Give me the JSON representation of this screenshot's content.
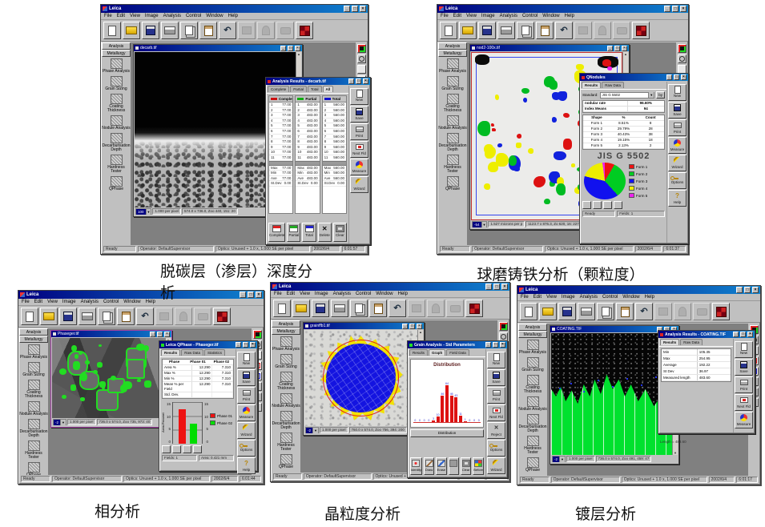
{
  "captions": {
    "decarb": "脱碳层（渗层）深度分",
    "decarb_wrap": "析",
    "nodule": "球磨铸铁分析（颗粒度）",
    "phase": "相分析",
    "grain": "晶粒度分析",
    "coating": "镀层分析"
  },
  "app": {
    "title": "Leica",
    "menus": [
      "File",
      "Edit",
      "View",
      "Image",
      "Analysis",
      "Control",
      "Window",
      "Help"
    ],
    "toolbar": [
      {
        "name": "new-icon"
      },
      {
        "name": "open-icon"
      },
      {
        "name": "save-icon"
      },
      {
        "name": "print-icon"
      },
      {
        "name": "copy-icon"
      },
      {
        "name": "paste-icon"
      },
      {
        "name": "undo-icon"
      },
      {
        "name": "measure-icon",
        "dis": true
      },
      {
        "name": "stage-icon",
        "dis": true
      },
      {
        "name": "camera-icon",
        "dis": true
      },
      {
        "name": "pattern-icon"
      }
    ],
    "sidebar_tabs": [
      "Analysis",
      "Metallurgy"
    ],
    "sidebar_items": [
      {
        "label": "Phase Analysis",
        "icon": "phase-analysis-icon"
      },
      {
        "label": "Grain Sizing",
        "icon": "grain-sizing-icon"
      },
      {
        "label": "Coating Thickness",
        "icon": "coating-thickness-icon"
      },
      {
        "label": "Nodule Analysis",
        "icon": "nodule-analysis-icon"
      },
      {
        "label": "Decarburisation Depth",
        "icon": "decarburisation-depth-icon"
      },
      {
        "label": "Hardness Tester",
        "icon": "hardness-tester-icon"
      },
      {
        "label": "QPhase",
        "icon": "qphase-icon"
      }
    ],
    "right_toolbar": [
      {
        "name": "acquire-icon"
      },
      {
        "name": "zoom-icon"
      },
      {
        "name": "pointer-icon"
      },
      {
        "name": "red-frame-icon"
      },
      {
        "name": "blue-frame-icon"
      },
      {
        "name": "pan-icon"
      },
      {
        "name": "snapshot-icon"
      },
      {
        "name": "bin-icon"
      }
    ],
    "status": {
      "ready": "Ready",
      "operator": "Operator: DefaultSupervisor",
      "optics": "Optics: Unused + 1.0 x, 1.000 SE per pixel",
      "date": "2002/6/4"
    }
  },
  "decarb": {
    "time": "6:01:57",
    "image": {
      "title": "decarb.tif",
      "zoom": "100",
      "scale": "1.000 per pixel",
      "pos": "574.0 x 736.0, Zoo  440, 151: 20"
    },
    "results": {
      "title": "Analysis Results - decarb.tif",
      "tabs": [
        "Complete",
        "Partial",
        "Total",
        "All"
      ],
      "cols": [
        {
          "name": "Complete",
          "color": "#cc1111",
          "rows": [
            {
              "i": "1",
              "v": "77.00"
            },
            {
              "i": "2",
              "v": "77.00"
            },
            {
              "i": "3",
              "v": "77.00"
            },
            {
              "i": "4",
              "v": "77.00"
            },
            {
              "i": "5",
              "v": "77.00"
            },
            {
              "i": "6",
              "v": "77.00"
            },
            {
              "i": "7",
              "v": "77.00"
            },
            {
              "i": "8",
              "v": "77.00"
            },
            {
              "i": "9",
              "v": "77.00"
            },
            {
              "i": "10",
              "v": "77.00"
            },
            {
              "i": "11",
              "v": "77.00"
            }
          ],
          "stats": [
            {
              "k": "Max",
              "v": "77.00"
            },
            {
              "k": "Min",
              "v": "77.00"
            },
            {
              "k": "Ave",
              "v": "77.00"
            },
            {
              "k": "St.Dev",
              "v": "0.00"
            }
          ]
        },
        {
          "name": "Partial",
          "color": "#11aa11",
          "rows": [
            {
              "i": "1",
              "v": "483.00"
            },
            {
              "i": "2",
              "v": "483.00"
            },
            {
              "i": "3",
              "v": "483.00"
            },
            {
              "i": "4",
              "v": "483.00"
            },
            {
              "i": "5",
              "v": "483.00"
            },
            {
              "i": "6",
              "v": "483.00"
            },
            {
              "i": "7",
              "v": "483.00"
            },
            {
              "i": "8",
              "v": "483.00"
            },
            {
              "i": "9",
              "v": "483.00"
            },
            {
              "i": "10",
              "v": "483.00"
            },
            {
              "i": "11",
              "v": "483.00"
            }
          ],
          "stats": [
            {
              "k": "Max",
              "v": "483.00"
            },
            {
              "k": "Min",
              "v": "483.00"
            },
            {
              "k": "Ave",
              "v": "483.00"
            },
            {
              "k": "St.Dev",
              "v": "0.00"
            }
          ]
        },
        {
          "name": "Total",
          "color": "#1111cc",
          "rows": [
            {
              "i": "1",
              "v": "560.00"
            },
            {
              "i": "2",
              "v": "560.00"
            },
            {
              "i": "3",
              "v": "560.00"
            },
            {
              "i": "4",
              "v": "560.00"
            },
            {
              "i": "5",
              "v": "560.00"
            },
            {
              "i": "6",
              "v": "560.00"
            },
            {
              "i": "7",
              "v": "560.00"
            },
            {
              "i": "8",
              "v": "560.00"
            },
            {
              "i": "9",
              "v": "560.00"
            },
            {
              "i": "10",
              "v": "560.00"
            },
            {
              "i": "11",
              "v": "560.00"
            }
          ],
          "stats": [
            {
              "k": "Max",
              "v": "560.00"
            },
            {
              "k": "Min",
              "v": "560.00"
            },
            {
              "k": "Ave",
              "v": "560.00"
            },
            {
              "k": "St.Dev",
              "v": "0.00"
            }
          ]
        }
      ],
      "bottom_buttons": [
        {
          "label": "Complete",
          "icon": "table-red-icon"
        },
        {
          "label": "Partial",
          "icon": "table-green-icon"
        },
        {
          "label": "Total",
          "icon": "table-blue-icon"
        },
        {
          "label": "Delete",
          "icon": "delete-x-icon"
        },
        {
          "label": "Clear",
          "icon": "monitor-icon"
        }
      ],
      "side_buttons": [
        {
          "label": "New",
          "icon": "page-icon"
        },
        {
          "label": "Save",
          "icon": "disk-icon"
        },
        {
          "label": "Print",
          "icon": "printer-icon"
        },
        {
          "label": "Next Fld",
          "icon": "next-field-icon"
        },
        {
          "label": "Measure",
          "icon": "measure-pie-icon"
        },
        {
          "label": "Wizard",
          "icon": "wand-icon"
        }
      ]
    }
  },
  "nodules": {
    "time": "6:01:37",
    "image": {
      "title": "nod2-100x.tif",
      "zoom": "-54",
      "scale": "1.527 microns per p",
      "pos": "1123.7 x 876.3, Zo  620, 16: 227"
    },
    "blob_colors": [
      "#dd1111",
      "#00bb22",
      "#1122dd",
      "#eeee00",
      "#ee22ee"
    ],
    "window": {
      "title": "QNodules",
      "tabs": [
        "Results",
        "Raw Data"
      ],
      "standard_label": "Standard:",
      "standard_value": "JIS G 5502",
      "by_label": "by",
      "summary": [
        {
          "k": "nodular rate",
          "v": "96.60%"
        },
        {
          "k": "Index Means",
          "v": "94"
        }
      ],
      "table": {
        "headers": [
          "Shape",
          "%",
          "Count"
        ],
        "rows": [
          {
            "shape": "Form 1",
            "pct": "8.51%",
            "count": "8"
          },
          {
            "shape": "Form 2",
            "pct": "29.79%",
            "count": "28"
          },
          {
            "shape": "Form 3",
            "pct": "40.43%",
            "count": "38"
          },
          {
            "shape": "Form 4",
            "pct": "19.15%",
            "count": "18"
          },
          {
            "shape": "Form 5",
            "pct": "2.13%",
            "count": "2"
          }
        ]
      },
      "chart_title": "JIS G 5502",
      "legend": [
        {
          "label": "Form 1",
          "color": "#ee1111"
        },
        {
          "label": "Form 2",
          "color": "#00cc22"
        },
        {
          "label": "Form 3",
          "color": "#1111ee"
        },
        {
          "label": "Form 4",
          "color": "#eeee00"
        },
        {
          "label": "Form 5",
          "color": "#ee22ee"
        }
      ],
      "mini_icons": [
        {
          "name": "field-list-icon"
        },
        {
          "name": "field-step-icon"
        },
        {
          "name": "chart-toggle-icon"
        },
        {
          "name": "table-toggle-icon"
        }
      ],
      "status_left": "Ready",
      "status_right": "Fields: 1",
      "side_buttons": [
        {
          "label": "New",
          "icon": "page-icon"
        },
        {
          "label": "Save",
          "icon": "disk-icon"
        },
        {
          "label": "Print",
          "icon": "printer-icon"
        },
        {
          "label": "Measure",
          "icon": "measure-pie-icon"
        },
        {
          "label": "Wizard",
          "icon": "wand-icon"
        },
        {
          "label": "Options",
          "icon": "key-icon"
        },
        {
          "label": "Help",
          "icon": "help-icon"
        }
      ]
    }
  },
  "phase": {
    "time": "6:01:44",
    "image": {
      "title": "Phaseger.tif",
      "zoom": "-2",
      "scale": "1.000 per pixel",
      "pos": "736.0 x 574.0, Zoo  735, 973: 40"
    },
    "blob_color": "#22dd22",
    "window": {
      "title": "Leica QPhase - Phaseger.tif",
      "tabs": [
        "Results",
        "Raw Data",
        "Statistics"
      ],
      "table": {
        "headers": [
          "Phase",
          "Phase 01",
          "Phase 02"
        ],
        "rows": [
          {
            "k": "Area %",
            "p1": "12.290",
            "p2": "7.310"
          },
          {
            "k": "Max %",
            "p1": "12.290",
            "p2": "7.310"
          },
          {
            "k": "Min %",
            "p1": "12.290",
            "p2": "7.310"
          },
          {
            "k": "Mean % per Field",
            "p1": "12.290",
            "p2": "7.310"
          },
          {
            "k": "Std. Dev.",
            "p1": "",
            "p2": ""
          }
        ]
      },
      "chart": {
        "type": "bar",
        "ylabel": "Area Percent",
        "ticks": [
          "15",
          "10",
          "5",
          "0"
        ],
        "ylim": [
          0,
          15
        ],
        "series": [
          {
            "name": "Phase 01",
            "color": "#ee1111",
            "value": 12.29
          },
          {
            "name": "Phase 02",
            "color": "#00dd00",
            "value": 7.31
          }
        ]
      },
      "mini_icons": [
        {
          "name": "field-list-icon"
        },
        {
          "name": "field-step-icon"
        },
        {
          "name": "chart-toggle-icon"
        },
        {
          "name": "table-toggle-icon"
        }
      ],
      "status": [
        {
          "v": "Fields: 1"
        },
        {
          "v": "Area: 0.421 mm"
        }
      ],
      "side_buttons": [
        {
          "label": "New",
          "icon": "page-icon"
        },
        {
          "label": "Save",
          "icon": "disk-icon"
        },
        {
          "label": "Print",
          "icon": "printer-icon"
        },
        {
          "label": "Measure",
          "icon": "measure-pie-icon"
        },
        {
          "label": "Wizard",
          "icon": "wand-icon"
        },
        {
          "label": "Options",
          "icon": "key-icon"
        },
        {
          "label": "Help",
          "icon": "help-icon"
        }
      ]
    }
  },
  "grain": {
    "time": "6:01:25",
    "image": {
      "title": "grainffb1.tif",
      "zoom": "-2",
      "scale": "1.000 per pixel",
      "pos": "760.0 x 574.0, Zoo  756, 394: 200"
    },
    "window": {
      "title": "Grain Analysis - Std Parameters",
      "tabs": [
        "Results",
        "Graph",
        "Field Data"
      ],
      "chart": {
        "type": "histogram",
        "title": "Distribution",
        "values": [
          0,
          0,
          0,
          0,
          3,
          10,
          46,
          64,
          46,
          43,
          11,
          1,
          0,
          0,
          0
        ],
        "bar_color": "#dd1111",
        "label_color": "#2222cc",
        "ymax": 64
      },
      "graph_button": "Distribution",
      "bottom_buttons": [
        {
          "label": "Identify",
          "icon": "identify-icon"
        },
        {
          "label": "Draw",
          "icon": "draw-icon"
        },
        {
          "label": "Erase",
          "icon": "erase-icon"
        },
        {
          "label": "",
          "icon": "blank-icon"
        },
        {
          "label": "Clear",
          "icon": "monitor-icon"
        },
        {
          "label": "Before",
          "icon": "before-icon"
        }
      ],
      "side_buttons": [
        {
          "label": "New",
          "icon": "page-icon"
        },
        {
          "label": "Save",
          "icon": "disk-icon"
        },
        {
          "label": "Print",
          "icon": "printer-icon"
        },
        {
          "label": "Next Fld",
          "icon": "next-field-icon"
        },
        {
          "label": "Reject",
          "icon": "reject-icon"
        },
        {
          "label": "Options",
          "icon": "key-icon"
        },
        {
          "label": "Wizard",
          "icon": "wand-icon"
        }
      ]
    }
  },
  "coating": {
    "time": "6:01:17",
    "image": {
      "title": "COATING.TIF",
      "zoom": "-2",
      "scale": "1.000 per pixel",
      "pos": "736.0 x 574.0, Zoo  491, 459: 47"
    },
    "note": "Length = 483.60",
    "window": {
      "title": "Analysis Results - COATING.TIF",
      "tabs": [
        "Results",
        "Raw Data"
      ],
      "table": [
        {
          "k": "Min",
          "v": "105.35"
        },
        {
          "k": "Max",
          "v": "254.95"
        },
        {
          "k": "Average",
          "v": "192.22"
        },
        {
          "k": "St Dev",
          "v": "36.97"
        },
        {
          "k": "Measured length",
          "v": "483.60"
        }
      ],
      "side_buttons": [
        {
          "label": "New",
          "icon": "page-icon"
        },
        {
          "label": "Save",
          "icon": "disk-icon"
        },
        {
          "label": "Print",
          "icon": "printer-icon"
        },
        {
          "label": "Next Fld",
          "icon": "next-field-icon"
        },
        {
          "label": "Measure",
          "icon": "measure-pie-icon"
        }
      ]
    }
  }
}
